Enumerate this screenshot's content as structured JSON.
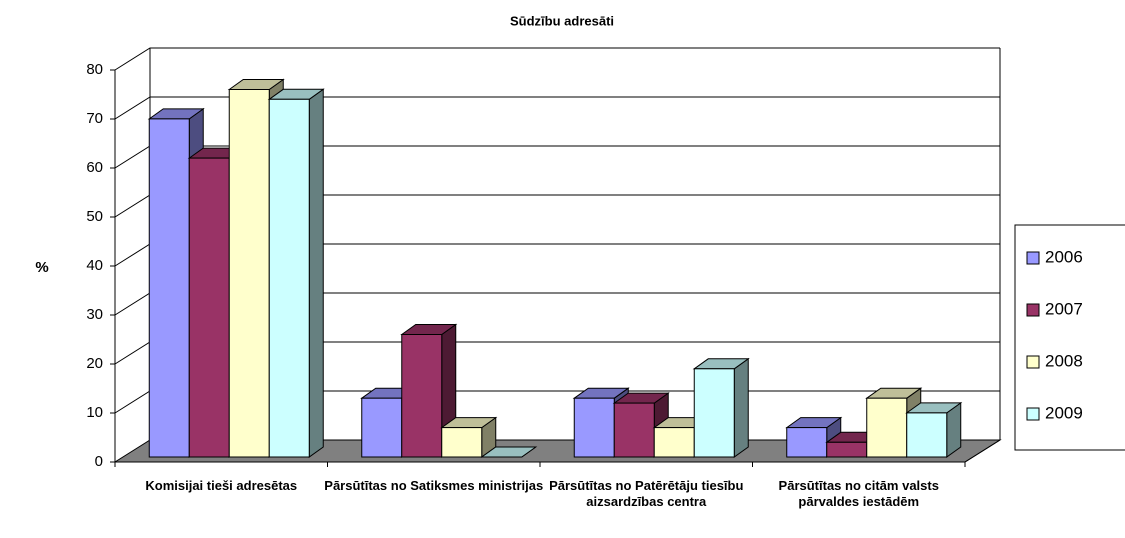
{
  "chart_data": {
    "type": "bar3d",
    "title": "Sūdzību adresāti",
    "y_label": "%",
    "categories": [
      "Komisijai tieši adresētas",
      "Pārsūtītas no Satiksmes ministrijas",
      "Pārsūtītas no Patērētāju tiesību aizsardzības centra",
      "Pārsūtītas no citām valsts pārvaldes iestādēm"
    ],
    "series": [
      {
        "name": "2006",
        "color": "#9999ff",
        "values": [
          69,
          12,
          12,
          6
        ]
      },
      {
        "name": "2007",
        "color": "#993366",
        "values": [
          61,
          25,
          11,
          3
        ]
      },
      {
        "name": "2008",
        "color": "#ffffcc",
        "values": [
          75,
          6,
          6,
          12
        ]
      },
      {
        "name": "2009",
        "color": "#ccffff",
        "values": [
          73,
          0,
          18,
          9
        ]
      }
    ],
    "ylim": [
      0,
      80
    ],
    "yticks": [
      0,
      10,
      20,
      30,
      40,
      50,
      60,
      70,
      80
    ],
    "grid": true,
    "legend": "right"
  }
}
